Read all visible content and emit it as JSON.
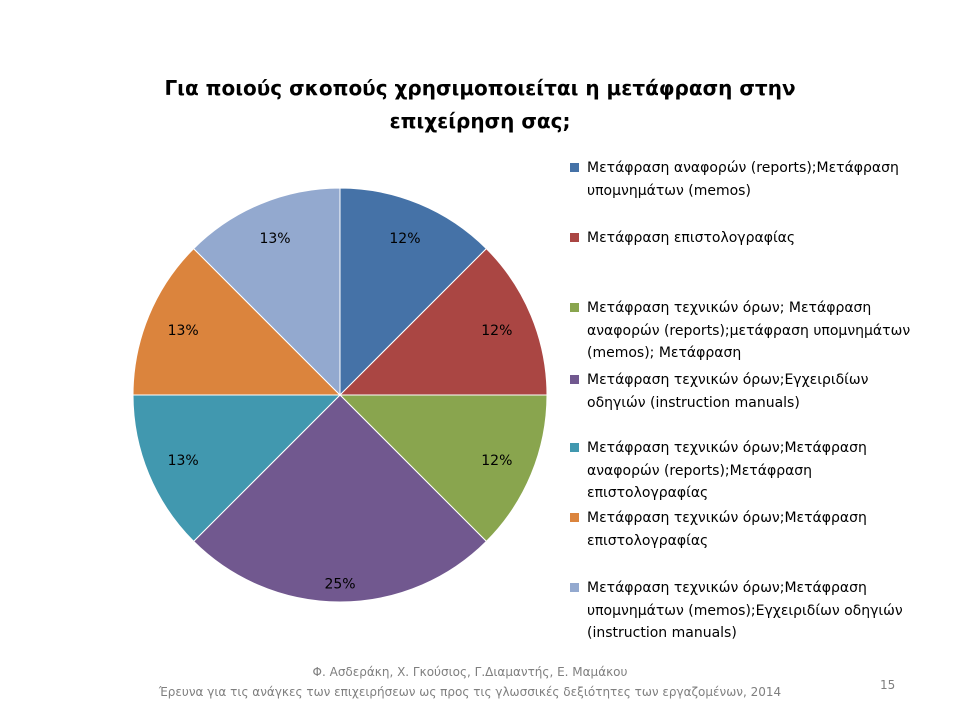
{
  "footer": {
    "line1": "Φ. Ασδεράκη, Χ. Γκούσιος, Γ.Διαμαντής, Ε. Μαμάκου",
    "line2": "Έρευνα για τις ανάγκες των επιχειρήσεων ως προς τις γλωσσικές δεξιότητες των εργαζομένων, 2014"
  },
  "page_number": "15",
  "chart_data": {
    "type": "pie",
    "title_lines": [
      "Για ποιούς σκοπούς χρησιμοποιείται η μετάφραση στην",
      "επιχείρηση σας;"
    ],
    "legend_position": "right",
    "slices": [
      {
        "label": "Μετάφραση αναφορών (reports);Μετάφραση υπομνημάτων (memos)",
        "value": 12.5,
        "display": "12%",
        "color": "#4572A7"
      },
      {
        "label": "Μετάφραση επιστολογραφίας",
        "value": 12.5,
        "display": "12%",
        "color": "#AA4643"
      },
      {
        "label": "Μετάφραση τεχνικών όρων; Μετάφραση αναφορών (reports);μετάφραση υπομνημάτων (memos); Μετάφραση",
        "value": 12.5,
        "display": "12%",
        "color": "#89A54E"
      },
      {
        "label": "Μετάφραση τεχνικών όρων;Εγχειριδίων οδηγιών (instruction manuals)",
        "value": 25,
        "display": "25%",
        "color": "#71588F"
      },
      {
        "label": "Μετάφραση τεχνικών όρων;Μετάφραση αναφορών (reports);Μετάφραση επιστολογραφίας",
        "value": 12.5,
        "display": "13%",
        "color": "#4198AF"
      },
      {
        "label": "Μετάφραση τεχνικών όρων;Μετάφραση επιστολογραφίας",
        "value": 12.5,
        "display": "13%",
        "color": "#DB843D"
      },
      {
        "label": "Μετάφραση τεχνικών όρων;Μετάφραση υπομνημάτων (memos);Εγχειριδίων οδηγιών (instruction manuals)",
        "value": 12.5,
        "display": "13%",
        "color": "#93A9CF"
      }
    ]
  }
}
